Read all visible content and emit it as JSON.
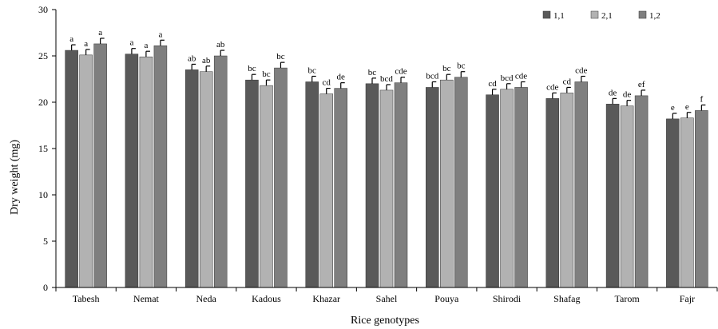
{
  "chart_data": {
    "type": "bar",
    "xlabel": "Rice genotypes",
    "ylabel": "Dry weight (mg)",
    "ylim": [
      0,
      30
    ],
    "yticks": [
      0,
      5,
      10,
      15,
      20,
      25,
      30
    ],
    "grid": false,
    "legend_position": "top-right",
    "error_bars": true,
    "categories": [
      "Tabesh",
      "Nemat",
      "Neda",
      "Kadous",
      "Khazar",
      "Sahel",
      "Pouya",
      "Shirodi",
      "Shafag",
      "Tarom",
      "Fajr"
    ],
    "series": [
      {
        "name": "1,1",
        "color": "#595959",
        "values": [
          25.6,
          25.2,
          23.5,
          22.4,
          22.2,
          22.0,
          21.6,
          20.8,
          20.4,
          19.8,
          18.2
        ],
        "errors": [
          0.6,
          0.6,
          0.6,
          0.6,
          0.6,
          0.6,
          0.6,
          0.6,
          0.6,
          0.6,
          0.6
        ],
        "labels": [
          "a",
          "a",
          "ab",
          "bc",
          "bc",
          "bc",
          "bcd",
          "cd",
          "cde",
          "de",
          "e"
        ]
      },
      {
        "name": "2,1",
        "color": "#b2b2b2",
        "values": [
          25.1,
          24.9,
          23.3,
          21.8,
          20.9,
          21.3,
          22.4,
          21.4,
          21.0,
          19.6,
          18.3
        ],
        "errors": [
          0.6,
          0.6,
          0.6,
          0.6,
          0.6,
          0.6,
          0.6,
          0.6,
          0.6,
          0.6,
          0.6
        ],
        "labels": [
          "a",
          "a",
          "ab",
          "bc",
          "cd",
          "bcd",
          "bc",
          "bcd",
          "cd",
          "de",
          "e"
        ]
      },
      {
        "name": "1,2",
        "color": "#7f7f7f",
        "values": [
          26.3,
          26.1,
          25.0,
          23.7,
          21.5,
          22.1,
          22.7,
          21.6,
          22.2,
          20.7,
          19.1
        ],
        "errors": [
          0.6,
          0.6,
          0.6,
          0.6,
          0.6,
          0.6,
          0.6,
          0.6,
          0.6,
          0.6,
          0.6
        ],
        "labels": [
          "a",
          "a",
          "ab",
          "bc",
          "de",
          "cde",
          "bc",
          "cde",
          "cde",
          "ef",
          "f"
        ]
      }
    ]
  }
}
